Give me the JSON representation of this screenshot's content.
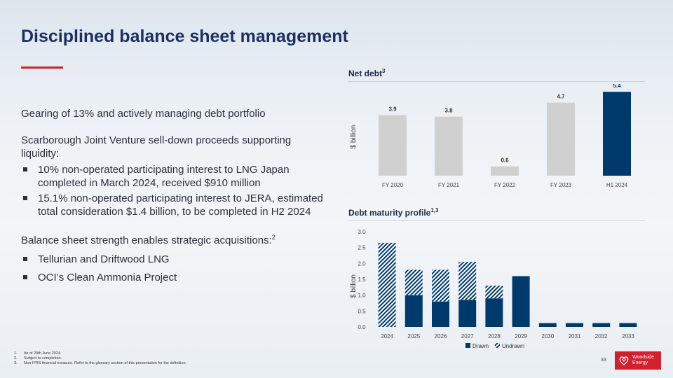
{
  "slide": {
    "title": "Disciplined balance sheet management",
    "page_number": "33"
  },
  "body": {
    "p1": "Gearing of 13% and actively managing debt portfolio",
    "p2": "Scarborough Joint Venture sell-down proceeds supporting liquidity:",
    "p2_bullets": [
      "10% non-operated participating interest to LNG Japan completed in March 2024, received $910 million",
      "15.1% non-operated participating interest to JERA, estimated total consideration $1.4 billion, to be completed in H2 2024"
    ],
    "p3": "Balance sheet strength enables strategic acquisitions:",
    "p3_sup": "2",
    "p3_bullets": [
      "Tellurian and Driftwood LNG",
      "OCI’s Clean Ammonia Project"
    ]
  },
  "footnotes": [
    {
      "num": "1.",
      "text": "As of 29th June 2024."
    },
    {
      "num": "2.",
      "text": "Subject to completion."
    },
    {
      "num": "3.",
      "text": "Non-IFRS financial measure. Refer to the glossary section of this presentation for the definition."
    }
  ],
  "logo": {
    "line1": "Woodside",
    "line2": "Energy",
    "icon": "woodside-emblem-icon"
  },
  "colors": {
    "navy": "#003a6c",
    "grey_bar": "#d0d0d0",
    "accent_red": "#d3202f",
    "title": "#1b2f63"
  },
  "chart_data": [
    {
      "type": "bar",
      "title": "Net debt",
      "title_sup": "3",
      "ylabel": "$ billion",
      "xlabel": "",
      "categories": [
        "FY 2020",
        "FY 2021",
        "FY 2022",
        "FY 2023",
        "H1 2024"
      ],
      "values": [
        3.9,
        3.8,
        0.6,
        4.7,
        5.4
      ],
      "value_labels": [
        "3.9",
        "3.8",
        "0.6",
        "4.7",
        "5.4"
      ],
      "highlight_index": 4,
      "ylim": [
        0,
        6
      ]
    },
    {
      "type": "bar",
      "stacked": true,
      "title": "Debt maturity profile",
      "title_sup": "1,3",
      "ylabel": "$ billion",
      "xlabel": "",
      "categories": [
        "2024",
        "2025",
        "2026",
        "2027",
        "2028",
        "2029",
        "2030",
        "2031",
        "2032",
        "2033"
      ],
      "series": [
        {
          "name": "Drawn",
          "values": [
            0.0,
            1.0,
            0.8,
            0.85,
            0.9,
            1.6,
            0.12,
            0.12,
            0.12,
            0.12
          ]
        },
        {
          "name": "Undrawn",
          "values": [
            2.65,
            0.8,
            1.0,
            1.2,
            0.4,
            0.0,
            0.0,
            0.0,
            0.0,
            0.0
          ]
        }
      ],
      "yticks": [
        "0.0",
        "0.5",
        "1.0",
        "1.5",
        "2.0",
        "2.5",
        "3.0"
      ],
      "ylim": [
        0,
        3.0
      ],
      "legend": [
        "Drawn",
        "Undrawn"
      ],
      "legend_position": "bottom-center"
    }
  ]
}
